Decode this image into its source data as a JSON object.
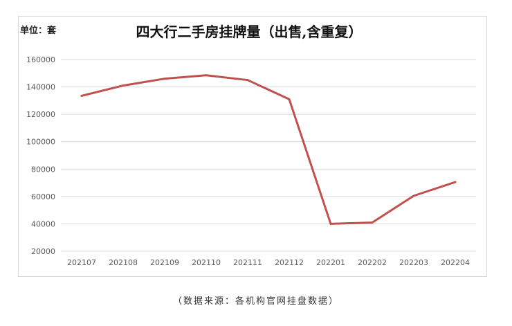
{
  "unit_label": "单位：套",
  "source_note": "（数据来源：各机构官网挂盘数据）",
  "colors": {
    "line": "#c0504d",
    "grid": "#d9d9d9",
    "tick_text": "#595959"
  },
  "chart_data": {
    "type": "line",
    "title": "四大行二手房挂牌量（出售,含重复）",
    "xlabel": "",
    "ylabel": "",
    "categories": [
      "202107",
      "202108",
      "202109",
      "202110",
      "202111",
      "202112",
      "202201",
      "202202",
      "202203",
      "202204"
    ],
    "series": [
      {
        "values": [
          133500,
          141000,
          146000,
          148500,
          145000,
          131000,
          40000,
          41000,
          60500,
          70500
        ]
      }
    ],
    "ylim": [
      20000,
      160000
    ],
    "yticks": [
      "20000",
      "40000",
      "60000",
      "80000",
      "100000",
      "120000",
      "140000",
      "160000"
    ],
    "grid": true,
    "legend": "none"
  }
}
